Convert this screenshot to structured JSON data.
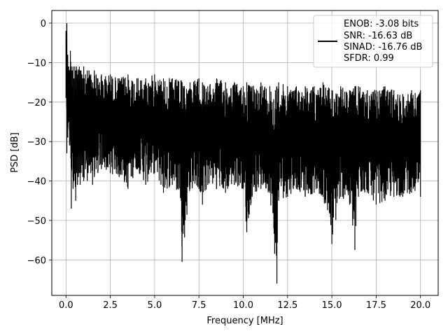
{
  "chart_data": {
    "type": "line",
    "xlabel": "Frequency [MHz]",
    "ylabel": "PSD [dB]",
    "xlim": [
      -0.8,
      21.0
    ],
    "ylim": [
      -69.0,
      3.2
    ],
    "xticks": [
      0.0,
      2.5,
      5.0,
      7.5,
      10.0,
      12.5,
      15.0,
      17.5,
      20.0
    ],
    "xtick_labels": [
      "0.0",
      "2.5",
      "5.0",
      "7.5",
      "10.0",
      "12.5",
      "15.0",
      "17.5",
      "20.0"
    ],
    "yticks": [
      0,
      -10,
      -20,
      -30,
      -40,
      -50,
      -60
    ],
    "ytick_labels": [
      "0",
      "−10",
      "−20",
      "−30",
      "−40",
      "−50",
      "−60"
    ],
    "grid": true,
    "legend_position": "top-right",
    "series": [
      {
        "color": "#000000",
        "x": [
          0.0,
          0.05,
          0.1,
          0.15,
          0.2,
          0.25,
          0.3,
          0.35,
          0.4,
          0.45,
          0.5,
          0.55,
          0.6,
          0.65,
          0.7,
          0.75,
          0.8,
          0.85,
          0.9,
          0.95,
          1.0,
          1.1,
          1.2,
          1.25,
          1.3,
          1.4,
          1.5,
          1.6,
          1.7,
          1.8,
          1.9,
          2.0,
          2.5,
          3.0,
          3.5,
          4.0,
          4.5,
          5.0,
          5.5,
          6.0,
          6.5,
          6.55,
          7.0,
          7.5,
          7.7,
          8.0,
          8.5,
          9.0,
          9.5,
          10.0,
          10.2,
          10.5,
          11.0,
          11.5,
          11.9,
          12.0,
          12.5,
          13.0,
          13.5,
          14.0,
          14.5,
          15.0,
          15.5,
          16.0,
          16.3,
          16.5,
          17.0,
          17.5,
          18.0,
          18.5,
          19.0,
          19.5,
          20.0
        ],
        "upper": [
          -2.0,
          0.0,
          -8.0,
          -11.0,
          -12.0,
          -7.0,
          -11.0,
          -12.0,
          -11.0,
          -14.0,
          -11.0,
          -12.0,
          -11.0,
          -13.0,
          -12.0,
          -11.0,
          -12.0,
          -12.0,
          -13.0,
          -14.0,
          -11.0,
          -13.0,
          -12.0,
          -14.0,
          -12.0,
          -13.0,
          -15.0,
          -12.0,
          -13.0,
          -14.0,
          -15.0,
          -13.0,
          -13.0,
          -14.0,
          -13.0,
          -14.0,
          -14.0,
          -13.0,
          -14.0,
          -14.0,
          -14.5,
          -15.0,
          -15.0,
          -14.0,
          -15.0,
          -16.0,
          -14.0,
          -15.0,
          -15.0,
          -16.0,
          -15.0,
          -16.0,
          -15.0,
          -16.0,
          -16.0,
          -15.0,
          -16.0,
          -16.0,
          -16.0,
          -16.0,
          -15.0,
          -17.0,
          -16.0,
          -17.0,
          -16.0,
          -16.0,
          -17.0,
          -17.0,
          -16.0,
          -17.0,
          -18.0,
          -17.0,
          -17.0
        ],
        "lower": [
          -19.0,
          -33.0,
          -29.0,
          -25.0,
          -31.0,
          -30.0,
          -47.0,
          -33.0,
          -42.0,
          -40.0,
          -38.0,
          -45.0,
          -38.0,
          -41.0,
          -39.0,
          -38.0,
          -41.0,
          -38.0,
          -36.0,
          -39.0,
          -40.0,
          -37.0,
          -40.0,
          -38.0,
          -36.0,
          -38.0,
          -41.0,
          -39.0,
          -37.0,
          -38.0,
          -36.0,
          -37.0,
          -38.0,
          -39.0,
          -42.0,
          -37.0,
          -41.0,
          -38.0,
          -43.0,
          -41.0,
          -45.0,
          -60.5,
          -42.0,
          -42.0,
          -46.0,
          -41.0,
          -42.0,
          -43.0,
          -41.0,
          -42.0,
          -53.0,
          -44.0,
          -42.0,
          -43.0,
          -66.0,
          -45.0,
          -44.0,
          -42.0,
          -44.0,
          -43.0,
          -44.0,
          -56.0,
          -44.0,
          -46.0,
          -57.5,
          -44.0,
          -43.0,
          -46.0,
          -45.0,
          -44.0,
          -44.0,
          -43.0,
          -44.0
        ]
      }
    ],
    "legend_lines": [
      "ENOB: -3.08 bits",
      "SNR: -16.63 dB",
      "SINAD: -16.76 dB",
      "SFDR: 0.99"
    ]
  }
}
